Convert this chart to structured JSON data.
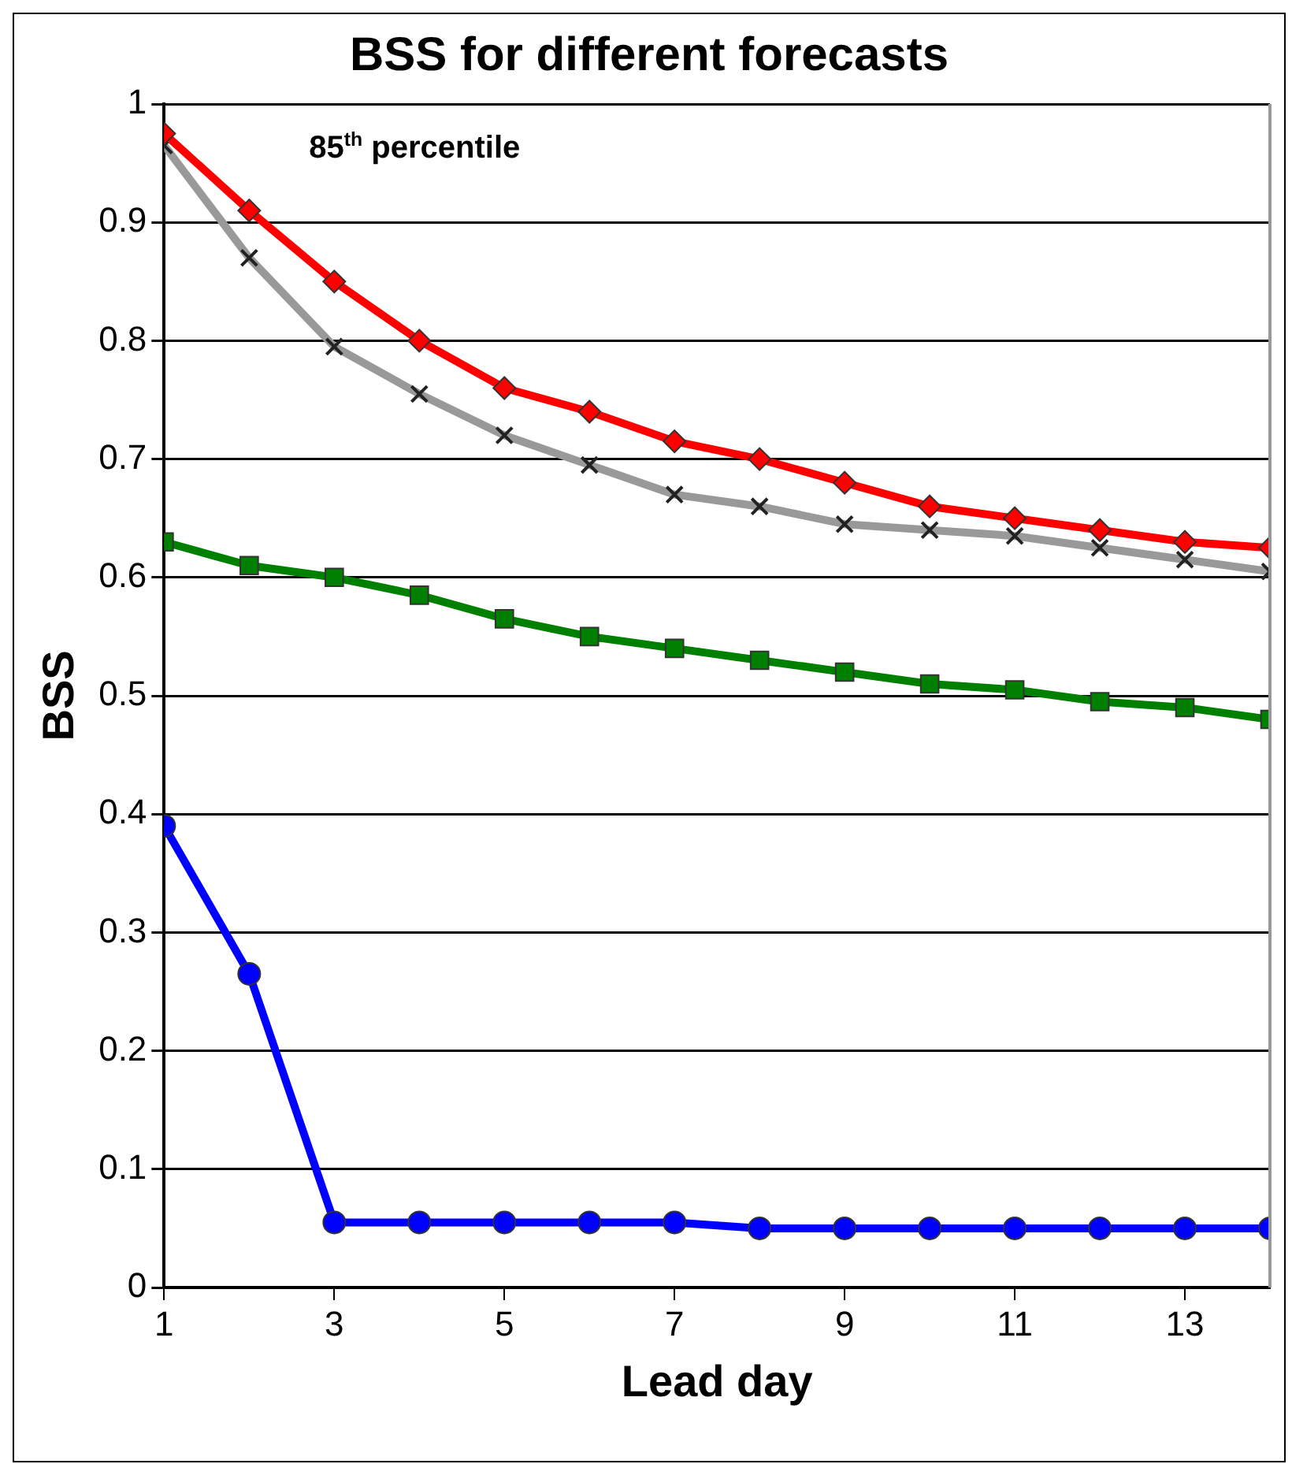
{
  "chart_data": {
    "type": "line",
    "title": "BSS for different forecasts",
    "xlabel": "Lead day",
    "ylabel": "BSS",
    "annotations": [
      "85$^{th}$ percentile"
    ],
    "x": [
      1,
      2,
      3,
      4,
      5,
      6,
      7,
      8,
      9,
      10,
      11,
      12,
      13,
      14
    ],
    "xlim": [
      1,
      14
    ],
    "xticks": [
      1,
      3,
      5,
      7,
      9,
      11,
      13
    ],
    "series": [
      {
        "color": "#ff0000",
        "marker": "diamond",
        "values": [
          0.975,
          0.91,
          0.85,
          0.8,
          0.76,
          0.74,
          0.715,
          0.7,
          0.68,
          0.66,
          0.65,
          0.64,
          0.63,
          0.625
        ]
      },
      {
        "color": "#999999",
        "marker": "cross",
        "values": [
          0.965,
          0.87,
          0.795,
          0.755,
          0.72,
          0.695,
          0.67,
          0.66,
          0.645,
          0.64,
          0.635,
          0.625,
          0.615,
          0.605
        ]
      },
      {
        "color": "#008000",
        "marker": "square",
        "values": [
          0.63,
          0.61,
          0.6,
          0.585,
          0.565,
          0.55,
          0.54,
          0.53,
          0.52,
          0.51,
          0.505,
          0.495,
          0.49,
          0.48
        ]
      },
      {
        "color": "#0000ff",
        "marker": "circle",
        "values": [
          0.39,
          0.265,
          0.055,
          0.055,
          0.055,
          0.055,
          0.055,
          0.05,
          0.05,
          0.05,
          0.05,
          0.05,
          0.05,
          0.05
        ]
      }
    ],
    "ylim": [
      0,
      1
    ],
    "yticks": [
      0,
      0.1,
      0.2,
      0.3,
      0.4,
      0.5,
      0.6,
      0.7,
      0.8,
      0.9,
      1
    ],
    "grid": "y",
    "legend": false
  }
}
